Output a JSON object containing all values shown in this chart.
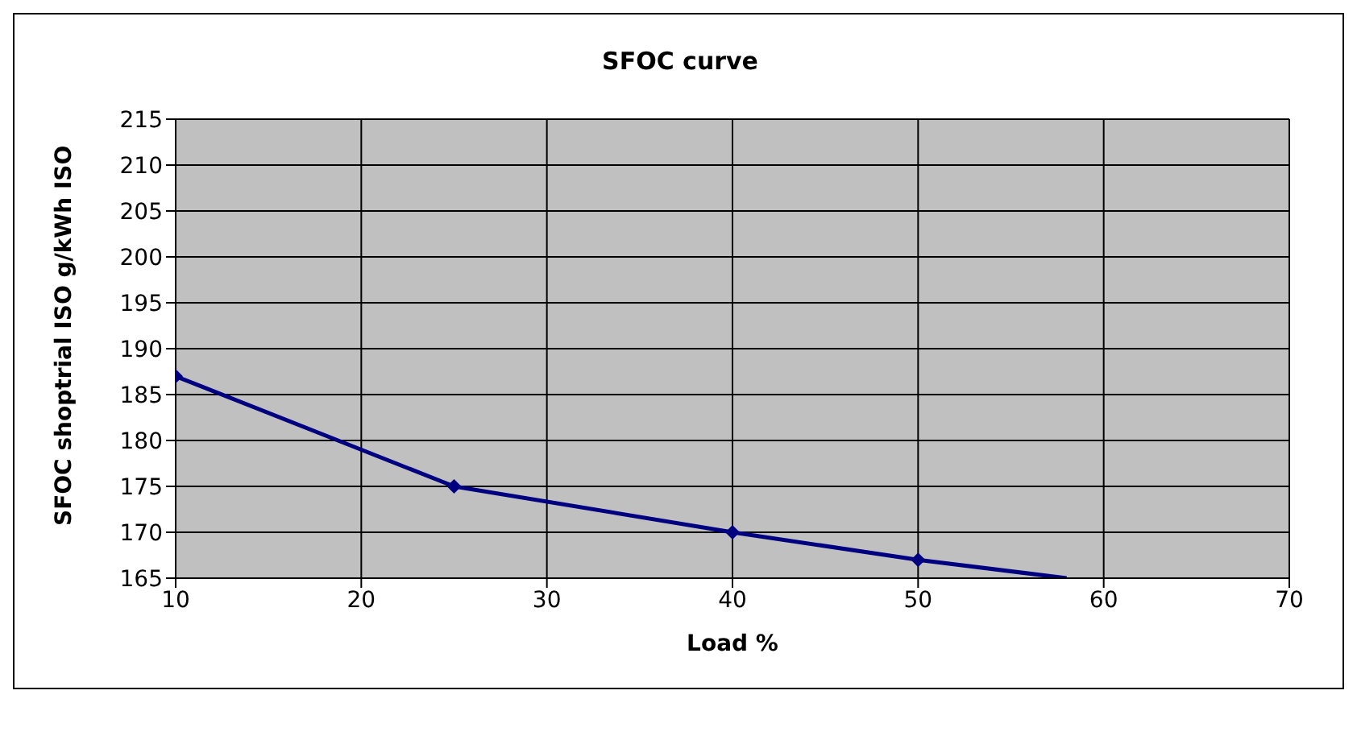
{
  "chart_data": {
    "type": "line",
    "title": "SFOC curve",
    "xlabel": "Load %",
    "ylabel": "SFOC shoptrial ISO g/kWh ISO",
    "x": [
      10,
      25,
      40,
      50,
      58
    ],
    "series": [
      {
        "color": "#000080",
        "values": [
          187,
          175,
          170,
          167,
          165
        ]
      }
    ],
    "xlim": [
      10,
      70
    ],
    "xticks": [
      10,
      20,
      30,
      40,
      50,
      60,
      70
    ],
    "ylim": [
      165,
      215
    ],
    "yticks": [
      165,
      170,
      175,
      180,
      185,
      190,
      195,
      200,
      205,
      210,
      215
    ],
    "grid": true,
    "marker": "diamond"
  }
}
